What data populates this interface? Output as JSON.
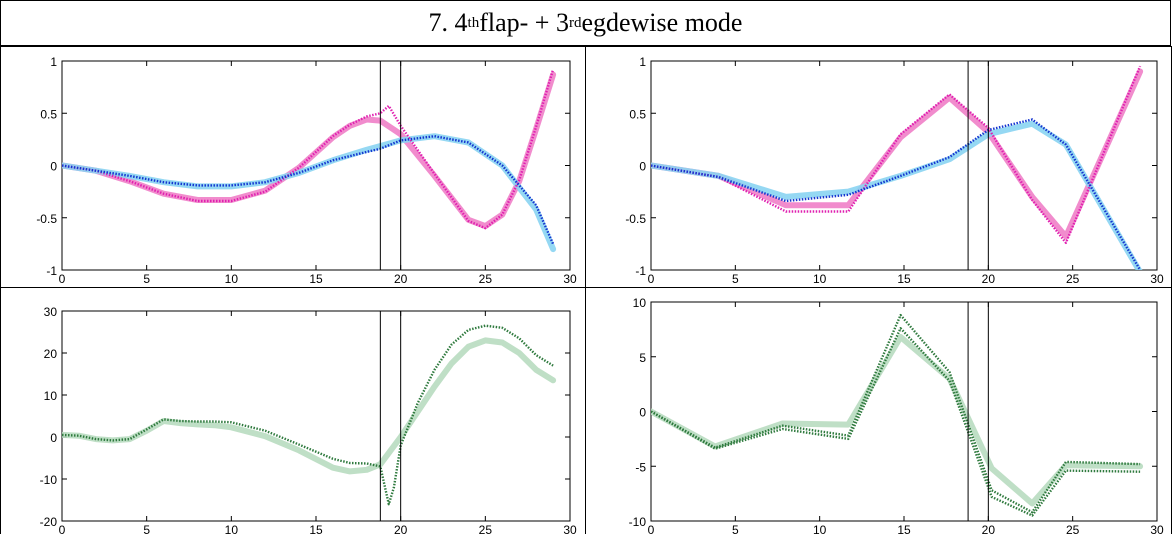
{
  "title": {
    "prefix": "7. 4",
    "sup1": "th",
    "middle": " flap- + 3",
    "sup2": "rd",
    "suffix": " egdewise mode"
  },
  "colors": {
    "light_magenta": "#f080c8",
    "magenta": "#e020b0",
    "light_blue": "#8ad4f2",
    "blue": "#1535d0",
    "light_green": "#b8dcc0",
    "dark_green": "#2f7a3e",
    "grid_line": "#000000"
  },
  "chart_data": [
    {
      "type": "line",
      "name": "top-left",
      "xlim": [
        0,
        30
      ],
      "ylim": [
        -1,
        1
      ],
      "xticks": [
        0,
        5,
        10,
        15,
        20,
        25,
        30
      ],
      "yticks": [
        -1,
        -0.5,
        0,
        0.5,
        1
      ],
      "xtick_labels": [
        "0",
        "5",
        "10",
        "15",
        "20",
        "25",
        "30"
      ],
      "ytick_labels": [
        "-1",
        "-0.5",
        "0",
        "0.5",
        "1"
      ],
      "vlines": [
        18.8,
        20
      ],
      "series": [
        {
          "style": "thick",
          "color": "light_magenta",
          "x": [
            0,
            2,
            4,
            6,
            8,
            10,
            12,
            14,
            16,
            17,
            18,
            18.8,
            20,
            22,
            24,
            25,
            26,
            27,
            28,
            29
          ],
          "y": [
            0,
            -0.05,
            -0.15,
            -0.27,
            -0.33,
            -0.33,
            -0.24,
            -0.02,
            0.27,
            0.38,
            0.44,
            0.43,
            0.3,
            -0.1,
            -0.52,
            -0.58,
            -0.47,
            -0.15,
            0.35,
            0.87
          ]
        },
        {
          "style": "dotted",
          "color": "magenta",
          "x": [
            0,
            2,
            4,
            6,
            8,
            10,
            12,
            14,
            16,
            17,
            18,
            18.8,
            19.3,
            20,
            22,
            24,
            25,
            26,
            27,
            28,
            29
          ],
          "y": [
            0,
            -0.05,
            -0.15,
            -0.27,
            -0.34,
            -0.34,
            -0.25,
            -0.02,
            0.28,
            0.39,
            0.47,
            0.5,
            0.57,
            0.38,
            -0.08,
            -0.53,
            -0.6,
            -0.47,
            -0.14,
            0.37,
            0.92
          ]
        },
        {
          "style": "thick",
          "color": "light_blue",
          "x": [
            0,
            2,
            4,
            6,
            8,
            10,
            12,
            14,
            16,
            18,
            20,
            22,
            24,
            26,
            28,
            29
          ],
          "y": [
            0,
            -0.05,
            -0.1,
            -0.16,
            -0.2,
            -0.2,
            -0.16,
            -0.07,
            0.05,
            0.15,
            0.24,
            0.28,
            0.22,
            0.0,
            -0.42,
            -0.8
          ]
        },
        {
          "style": "dotted",
          "color": "blue",
          "x": [
            0,
            2,
            4,
            6,
            8,
            10,
            12,
            14,
            16,
            18,
            18.8,
            20,
            22,
            24,
            26,
            28,
            29
          ],
          "y": [
            0,
            -0.05,
            -0.1,
            -0.16,
            -0.19,
            -0.19,
            -0.16,
            -0.07,
            0.05,
            0.13,
            0.16,
            0.24,
            0.28,
            0.22,
            0.0,
            -0.38,
            -0.75
          ]
        }
      ]
    },
    {
      "type": "line",
      "name": "top-right",
      "xlim": [
        0,
        30
      ],
      "ylim": [
        -1,
        1
      ],
      "xticks": [
        0,
        5,
        10,
        15,
        20,
        25,
        30
      ],
      "yticks": [
        -1,
        -0.5,
        0,
        0.5,
        1
      ],
      "xtick_labels": [
        "0",
        "5",
        "10",
        "15",
        "20",
        "25",
        "30"
      ],
      "ytick_labels": [
        "-1",
        "-0.5",
        "0",
        "0.5",
        "1"
      ],
      "vlines": [
        18.8,
        20
      ],
      "series": [
        {
          "style": "thick",
          "color": "light_magenta",
          "x": [
            0,
            4,
            8,
            11.7,
            14.8,
            17.7,
            20,
            22.6,
            24.6,
            29
          ],
          "y": [
            0,
            -0.1,
            -0.38,
            -0.38,
            0.27,
            0.65,
            0.32,
            -0.3,
            -0.68,
            0.9
          ]
        },
        {
          "style": "dotted",
          "color": "magenta",
          "x": [
            0,
            4,
            8,
            11.7,
            14.8,
            17.7,
            20,
            22.6,
            24.6,
            29
          ],
          "y": [
            0,
            -0.11,
            -0.44,
            -0.44,
            0.3,
            0.68,
            0.36,
            -0.33,
            -0.74,
            0.95
          ]
        },
        {
          "style": "thick",
          "color": "light_blue",
          "x": [
            0,
            4,
            8,
            11.7,
            14.8,
            17.7,
            20,
            22.6,
            24.6,
            29
          ],
          "y": [
            0,
            -0.1,
            -0.3,
            -0.25,
            -0.1,
            0.06,
            0.3,
            0.4,
            0.2,
            -1.02
          ]
        },
        {
          "style": "dotted",
          "color": "blue",
          "x": [
            0,
            4,
            8,
            11.7,
            14.8,
            17.7,
            20,
            22.6,
            24.6,
            29
          ],
          "y": [
            0,
            -0.11,
            -0.34,
            -0.28,
            -0.1,
            0.08,
            0.34,
            0.44,
            0.2,
            -1.0
          ]
        }
      ]
    },
    {
      "type": "line",
      "name": "bottom-left",
      "xlim": [
        0,
        30
      ],
      "ylim": [
        -20,
        30
      ],
      "xticks": [
        0,
        5,
        10,
        15,
        20,
        25,
        30
      ],
      "yticks": [
        -20,
        -10,
        0,
        10,
        20,
        30
      ],
      "xtick_labels": [
        "0",
        "5",
        "10",
        "15",
        "20",
        "25",
        "30"
      ],
      "ytick_labels": [
        "-20",
        "-10",
        "0",
        "10",
        "20",
        "30"
      ],
      "vlines": [
        18.8,
        20
      ],
      "series": [
        {
          "style": "thick",
          "color": "light_green",
          "x": [
            0,
            1,
            2,
            3,
            4,
            5,
            6,
            7,
            8,
            9,
            10,
            12,
            14,
            16,
            17,
            18,
            18.8,
            20,
            21,
            22,
            23,
            24,
            25,
            26,
            27,
            28,
            29
          ],
          "y": [
            0.5,
            0.3,
            -0.5,
            -0.8,
            -0.5,
            1.5,
            3.8,
            3.3,
            3.0,
            2.8,
            2.3,
            0.2,
            -3.2,
            -7.3,
            -8.2,
            -7.8,
            -6.5,
            0,
            6,
            12,
            17.5,
            21.5,
            23,
            22.5,
            20,
            16,
            13.5
          ]
        },
        {
          "style": "dotted",
          "color": "dark_green",
          "x": [
            0,
            1,
            2,
            3,
            4,
            5,
            6,
            7,
            8,
            9,
            10,
            12,
            14,
            16,
            17,
            18,
            18.8,
            19.3,
            19.6,
            20,
            21,
            22,
            23,
            24,
            25,
            26,
            27,
            28,
            29
          ],
          "y": [
            0.5,
            0.3,
            -0.5,
            -0.8,
            -0.5,
            1.8,
            4.2,
            3.8,
            3.7,
            3.7,
            3.5,
            1.5,
            -1.8,
            -5.2,
            -6.2,
            -6.3,
            -7,
            -16,
            -12,
            -2,
            8,
            16,
            22,
            25.5,
            26.5,
            26,
            23.5,
            19.5,
            17
          ]
        }
      ]
    },
    {
      "type": "line",
      "name": "bottom-right",
      "xlim": [
        0,
        30
      ],
      "ylim": [
        -10,
        10
      ],
      "xticks": [
        0,
        5,
        10,
        15,
        20,
        25,
        30
      ],
      "yticks": [
        -10,
        -5,
        0,
        5,
        10
      ],
      "xtick_labels": [
        "0",
        "5",
        "10",
        "15",
        "20",
        "25",
        "30"
      ],
      "ytick_labels": [
        "-10",
        "-5",
        "0",
        "5",
        "10"
      ],
      "vlines": [
        18.8,
        20
      ],
      "series": [
        {
          "style": "thick",
          "color": "light_green",
          "x": [
            0,
            3.8,
            7.8,
            11.7,
            14.8,
            17.7,
            20.2,
            22.6,
            24.6,
            29
          ],
          "y": [
            0,
            -3.2,
            -1.1,
            -1.2,
            6.8,
            3.0,
            -5.2,
            -8.4,
            -4.9,
            -5.0
          ]
        },
        {
          "style": "dotted",
          "color": "dark_green",
          "x": [
            0,
            3.8,
            7.8,
            11.7,
            14.8,
            17.7,
            20.2,
            22.6,
            24.6,
            29
          ],
          "y": [
            0,
            -3.3,
            -1.3,
            -2.2,
            8.8,
            3.6,
            -7.2,
            -9.2,
            -4.6,
            -4.8
          ]
        },
        {
          "style": "dotted",
          "color": "dark_green",
          "x": [
            0,
            3.8,
            7.8,
            11.7,
            14.8,
            17.7,
            20.2,
            22.6,
            24.6,
            29
          ],
          "y": [
            0,
            -3.4,
            -1.6,
            -2.5,
            7.6,
            2.8,
            -7.8,
            -9.5,
            -5.4,
            -5.5
          ]
        }
      ]
    }
  ]
}
